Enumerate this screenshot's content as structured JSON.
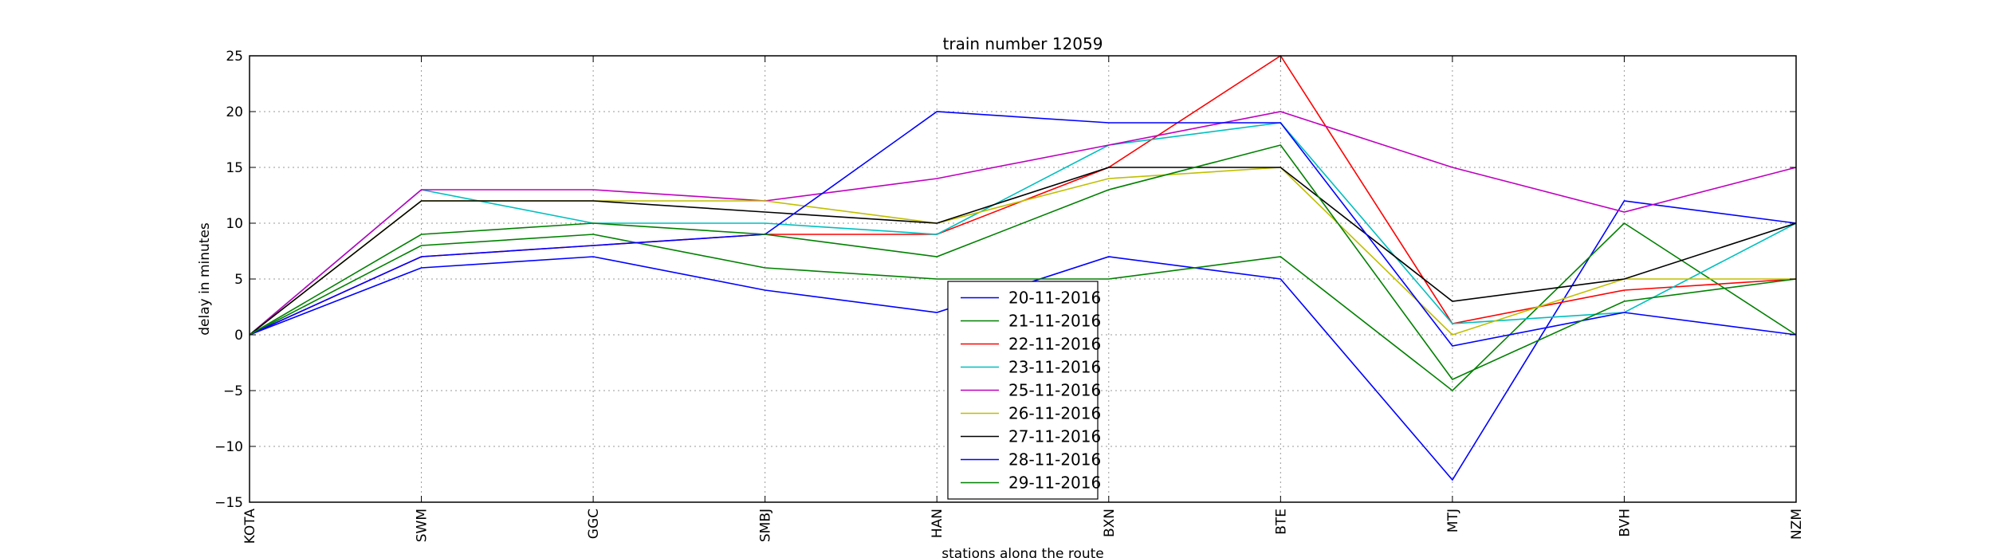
{
  "chart_data": {
    "type": "line",
    "title": "train number 12059",
    "xlabel": "stations along the route",
    "ylabel": "delay in minutes",
    "categories": [
      "KOTA",
      "SWM",
      "GGC",
      "SMBJ",
      "HAN",
      "BXN",
      "BTE",
      "MTJ",
      "BVH",
      "NZM"
    ],
    "ylim": [
      -15,
      25
    ],
    "yticks": [
      -15,
      -10,
      -5,
      0,
      5,
      10,
      15,
      20,
      25
    ],
    "ytick_labels": [
      "−15",
      "−10",
      "−5",
      "0",
      "5",
      "10",
      "15",
      "20",
      "25"
    ],
    "grid": true,
    "legend_position": "lower center",
    "series": [
      {
        "name": "20-11-2016",
        "color": "#0000ff",
        "values": [
          0,
          6,
          7,
          4,
          2,
          7,
          5,
          -13,
          12,
          10
        ]
      },
      {
        "name": "21-11-2016",
        "color": "#008000",
        "values": [
          0,
          8,
          9,
          6,
          5,
          5,
          7,
          -5,
          10,
          0
        ]
      },
      {
        "name": "22-11-2016",
        "color": "#ff0000",
        "values": [
          0,
          7,
          8,
          9,
          9,
          15,
          25,
          1,
          4,
          5
        ]
      },
      {
        "name": "23-11-2016",
        "color": "#00bfbf",
        "values": [
          0,
          13,
          10,
          10,
          9,
          17,
          19,
          1,
          2,
          10
        ]
      },
      {
        "name": "25-11-2016",
        "color": "#bf00bf",
        "values": [
          0,
          13,
          13,
          12,
          14,
          17,
          20,
          15,
          11,
          15
        ]
      },
      {
        "name": "26-11-2016",
        "color": "#bfbf00",
        "values": [
          0,
          12,
          12,
          12,
          10,
          14,
          15,
          0,
          5,
          5
        ]
      },
      {
        "name": "27-11-2016",
        "color": "#000000",
        "values": [
          0,
          12,
          12,
          11,
          10,
          15,
          15,
          3,
          5,
          10
        ]
      },
      {
        "name": "28-11-2016",
        "color": "#0000ff",
        "values": [
          0,
          7,
          8,
          9,
          20,
          19,
          19,
          -1,
          2,
          0
        ]
      },
      {
        "name": "29-11-2016",
        "color": "#008000",
        "values": [
          0,
          9,
          10,
          9,
          7,
          13,
          17,
          -4,
          3,
          5
        ]
      }
    ]
  }
}
